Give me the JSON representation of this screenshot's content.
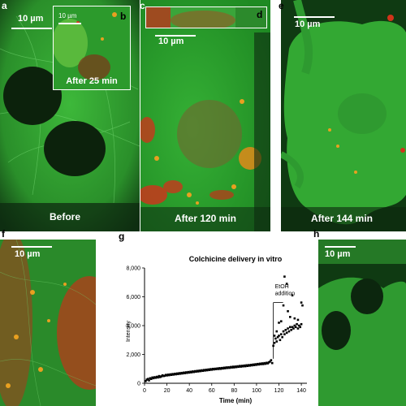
{
  "panels": {
    "a": {
      "label": "a",
      "scale": "10 µm",
      "caption": "Before"
    },
    "b": {
      "label": "b",
      "scale": "10 µm",
      "caption": "After 25 min"
    },
    "c": {
      "label": "c",
      "scale": "10 µm",
      "caption": "After 120 min"
    },
    "d": {
      "label": "d"
    },
    "e": {
      "label": "e",
      "scale": "10 µm",
      "caption": "After 144 min"
    },
    "f": {
      "label": "f",
      "scale": "10 µm"
    },
    "g": {
      "label": "g"
    },
    "h": {
      "label": "h",
      "scale": "10 µm"
    }
  },
  "colors": {
    "green": "#2fa82f",
    "dark_green": "#0f4a12",
    "nucleus": "#0c220c",
    "red": "#d0341a",
    "orange": "#e8a020",
    "black": "#000000",
    "white": "#ffffff"
  },
  "chart_data": {
    "type": "scatter",
    "title": "Colchicine delivery in vitro",
    "xlabel": "Time (min)",
    "ylabel": "Intensity",
    "xlim": [
      0,
      145
    ],
    "ylim": [
      0,
      8000
    ],
    "xticks": [
      "0",
      "20",
      "40",
      "60",
      "80",
      "100",
      "120",
      "140"
    ],
    "yticks": [
      "0",
      "2,000",
      "4,000",
      "6,000",
      "8,000"
    ],
    "annotation": {
      "text_line1": "EtOH",
      "text_line2": "addition",
      "x": 115
    },
    "series": [
      {
        "points": [
          [
            1,
            150
          ],
          [
            2,
            250
          ],
          [
            3,
            300
          ],
          [
            4,
            200
          ],
          [
            5,
            350
          ],
          [
            6,
            300
          ],
          [
            7,
            400
          ],
          [
            8,
            350
          ],
          [
            9,
            420
          ],
          [
            10,
            380
          ],
          [
            11,
            450
          ],
          [
            12,
            400
          ],
          [
            13,
            500
          ],
          [
            14,
            430
          ],
          [
            15,
            480
          ],
          [
            16,
            550
          ],
          [
            17,
            500
          ],
          [
            18,
            520
          ],
          [
            19,
            580
          ],
          [
            20,
            540
          ],
          [
            21,
            600
          ],
          [
            22,
            560
          ],
          [
            23,
            620
          ],
          [
            24,
            580
          ],
          [
            25,
            640
          ],
          [
            26,
            600
          ],
          [
            27,
            660
          ],
          [
            28,
            620
          ],
          [
            29,
            680
          ],
          [
            30,
            640
          ],
          [
            31,
            700
          ],
          [
            32,
            660
          ],
          [
            33,
            720
          ],
          [
            34,
            680
          ],
          [
            35,
            740
          ],
          [
            36,
            700
          ],
          [
            37,
            760
          ],
          [
            38,
            720
          ],
          [
            39,
            780
          ],
          [
            40,
            740
          ],
          [
            41,
            800
          ],
          [
            42,
            760
          ],
          [
            43,
            820
          ],
          [
            44,
            780
          ],
          [
            45,
            840
          ],
          [
            46,
            800
          ],
          [
            47,
            860
          ],
          [
            48,
            820
          ],
          [
            49,
            880
          ],
          [
            50,
            840
          ],
          [
            51,
            900
          ],
          [
            52,
            860
          ],
          [
            53,
            920
          ],
          [
            54,
            880
          ],
          [
            55,
            940
          ],
          [
            56,
            900
          ],
          [
            57,
            960
          ],
          [
            58,
            920
          ],
          [
            59,
            980
          ],
          [
            60,
            940
          ],
          [
            61,
            1000
          ],
          [
            62,
            960
          ],
          [
            63,
            1010
          ],
          [
            64,
            980
          ],
          [
            65,
            1030
          ],
          [
            66,
            990
          ],
          [
            67,
            1050
          ],
          [
            68,
            1000
          ],
          [
            69,
            1060
          ],
          [
            70,
            1020
          ],
          [
            71,
            1080
          ],
          [
            72,
            1040
          ],
          [
            73,
            1100
          ],
          [
            74,
            1060
          ],
          [
            75,
            1110
          ],
          [
            76,
            1070
          ],
          [
            77,
            1130
          ],
          [
            78,
            1090
          ],
          [
            79,
            1150
          ],
          [
            80,
            1100
          ],
          [
            81,
            1160
          ],
          [
            82,
            1120
          ],
          [
            83,
            1180
          ],
          [
            84,
            1140
          ],
          [
            85,
            1200
          ],
          [
            86,
            1150
          ],
          [
            87,
            1210
          ],
          [
            88,
            1170
          ],
          [
            89,
            1230
          ],
          [
            90,
            1180
          ],
          [
            91,
            1250
          ],
          [
            92,
            1200
          ],
          [
            93,
            1260
          ],
          [
            94,
            1220
          ],
          [
            95,
            1280
          ],
          [
            96,
            1240
          ],
          [
            97,
            1300
          ],
          [
            98,
            1260
          ],
          [
            99,
            1320
          ],
          [
            100,
            1280
          ],
          [
            101,
            1340
          ],
          [
            102,
            1300
          ],
          [
            103,
            1360
          ],
          [
            104,
            1320
          ],
          [
            105,
            1380
          ],
          [
            106,
            1330
          ],
          [
            107,
            1400
          ],
          [
            108,
            1350
          ],
          [
            109,
            1420
          ],
          [
            110,
            1380
          ],
          [
            111,
            1450
          ],
          [
            112,
            1500
          ],
          [
            113,
            1600
          ],
          [
            114,
            1400
          ],
          [
            115,
            2600
          ],
          [
            116,
            2800
          ],
          [
            117,
            3100
          ],
          [
            118,
            2900
          ],
          [
            119,
            3200
          ],
          [
            120,
            3300
          ],
          [
            121,
            3000
          ],
          [
            122,
            3400
          ],
          [
            123,
            3200
          ],
          [
            124,
            3600
          ],
          [
            125,
            3400
          ],
          [
            126,
            3700
          ],
          [
            127,
            3500
          ],
          [
            128,
            3800
          ],
          [
            129,
            3600
          ],
          [
            130,
            3900
          ],
          [
            131,
            3700
          ],
          [
            132,
            3900
          ],
          [
            133,
            3800
          ],
          [
            134,
            4000
          ],
          [
            135,
            3900
          ],
          [
            136,
            4100
          ],
          [
            137,
            3800
          ],
          [
            138,
            4000
          ],
          [
            139,
            3900
          ],
          [
            140,
            4100
          ],
          [
            116,
            3300
          ],
          [
            118,
            3600
          ],
          [
            120,
            4200
          ],
          [
            122,
            4300
          ],
          [
            124,
            5400
          ],
          [
            125,
            7400
          ],
          [
            127,
            6900
          ],
          [
            128,
            5000
          ],
          [
            130,
            4600
          ],
          [
            132,
            6100
          ],
          [
            134,
            4500
          ],
          [
            137,
            4400
          ],
          [
            140,
            5600
          ],
          [
            141,
            5400
          ]
        ]
      }
    ]
  }
}
